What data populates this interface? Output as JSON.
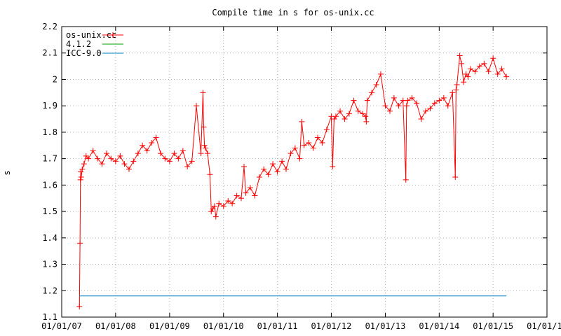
{
  "chart_data": {
    "type": "line",
    "title": "Compile time in s for os-unix.cc",
    "xlabel": "",
    "ylabel": "s",
    "x_is_date": true,
    "xlim": [
      "2007-01-01",
      "2016-01-01"
    ],
    "ylim": [
      1.1,
      2.2
    ],
    "y_ticks": [
      1.1,
      1.2,
      1.3,
      1.4,
      1.5,
      1.6,
      1.7,
      1.8,
      1.9,
      2.0,
      2.1,
      2.2
    ],
    "y_tick_labels": [
      "1.1",
      "1.2",
      "1.3",
      "1.4",
      "1.5",
      "1.6",
      "1.7",
      "1.8",
      "1.9",
      "2",
      "2.1",
      "2.2"
    ],
    "x_ticks": [
      "2007-01-01",
      "2008-01-01",
      "2009-01-01",
      "2010-01-01",
      "2011-01-01",
      "2012-01-01",
      "2013-01-01",
      "2014-01-01",
      "2015-01-01",
      "2016-01-01"
    ],
    "x_tick_labels": [
      "01/01/07",
      "01/01/08",
      "01/01/09",
      "01/01/10",
      "01/01/11",
      "01/01/12",
      "01/01/13",
      "01/01/14",
      "01/01/15",
      "01/01/16"
    ],
    "grid": true,
    "legend_position": "top-left",
    "series": [
      {
        "name": "os-unix.cc",
        "color": "#ff0000",
        "marker": "plus",
        "x": [
          "2007-05-01",
          "2007-05-05",
          "2007-05-08",
          "2007-05-10",
          "2007-05-13",
          "2007-05-20",
          "2007-06-01",
          "2007-06-15",
          "2007-07-01",
          "2007-08-01",
          "2007-09-01",
          "2007-10-01",
          "2007-11-01",
          "2007-12-01",
          "2008-01-01",
          "2008-02-01",
          "2008-03-01",
          "2008-04-01",
          "2008-05-01",
          "2008-06-01",
          "2008-07-01",
          "2008-08-01",
          "2008-09-01",
          "2008-10-01",
          "2008-11-01",
          "2008-12-01",
          "2009-01-01",
          "2009-02-01",
          "2009-03-01",
          "2009-04-01",
          "2009-05-01",
          "2009-06-01",
          "2009-07-01",
          "2009-08-01",
          "2009-08-15",
          "2009-08-20",
          "2009-08-25",
          "2009-09-01",
          "2009-09-15",
          "2009-10-01",
          "2009-10-10",
          "2009-10-20",
          "2009-11-01",
          "2009-11-10",
          "2009-12-01",
          "2010-01-01",
          "2010-02-01",
          "2010-03-01",
          "2010-04-01",
          "2010-05-01",
          "2010-05-20",
          "2010-06-01",
          "2010-07-01",
          "2010-08-01",
          "2010-09-01",
          "2010-10-01",
          "2010-11-01",
          "2010-12-01",
          "2011-01-01",
          "2011-02-01",
          "2011-03-01",
          "2011-04-01",
          "2011-05-01",
          "2011-06-01",
          "2011-06-15",
          "2011-07-01",
          "2011-08-01",
          "2011-09-01",
          "2011-10-01",
          "2011-11-01",
          "2011-12-01",
          "2012-01-01",
          "2012-01-10",
          "2012-01-20",
          "2012-02-01",
          "2012-03-01",
          "2012-04-01",
          "2012-05-01",
          "2012-06-01",
          "2012-07-01",
          "2012-08-01",
          "2012-08-20",
          "2012-08-25",
          "2012-09-01",
          "2012-10-01",
          "2012-11-01",
          "2012-12-01",
          "2013-01-01",
          "2013-02-01",
          "2013-03-01",
          "2013-04-01",
          "2013-05-01",
          "2013-05-20",
          "2013-05-25",
          "2013-06-01",
          "2013-07-01",
          "2013-08-01",
          "2013-09-01",
          "2013-10-01",
          "2013-11-01",
          "2013-12-01",
          "2014-01-01",
          "2014-02-01",
          "2014-03-01",
          "2014-04-01",
          "2014-04-20",
          "2014-04-25",
          "2014-05-01",
          "2014-05-20",
          "2014-06-01",
          "2014-06-15",
          "2014-07-01",
          "2014-07-15",
          "2014-08-01",
          "2014-09-01",
          "2014-10-01",
          "2014-11-01",
          "2014-12-01",
          "2015-01-01",
          "2015-02-01",
          "2015-03-01",
          "2015-04-01"
        ],
        "y": [
          1.14,
          1.38,
          1.62,
          1.65,
          1.63,
          1.66,
          1.68,
          1.71,
          1.7,
          1.73,
          1.7,
          1.68,
          1.72,
          1.7,
          1.69,
          1.71,
          1.68,
          1.66,
          1.69,
          1.72,
          1.75,
          1.73,
          1.76,
          1.78,
          1.72,
          1.7,
          1.69,
          1.72,
          1.7,
          1.73,
          1.67,
          1.69,
          1.9,
          1.72,
          1.95,
          1.82,
          1.75,
          1.74,
          1.72,
          1.64,
          1.5,
          1.51,
          1.52,
          1.48,
          1.53,
          1.52,
          1.54,
          1.53,
          1.56,
          1.55,
          1.67,
          1.57,
          1.59,
          1.56,
          1.63,
          1.66,
          1.64,
          1.68,
          1.65,
          1.69,
          1.66,
          1.72,
          1.74,
          1.7,
          1.84,
          1.75,
          1.76,
          1.74,
          1.78,
          1.76,
          1.81,
          1.86,
          1.67,
          1.85,
          1.86,
          1.88,
          1.85,
          1.87,
          1.92,
          1.88,
          1.87,
          1.86,
          1.84,
          1.92,
          1.95,
          1.98,
          2.02,
          1.9,
          1.88,
          1.93,
          1.9,
          1.92,
          1.62,
          1.9,
          1.92,
          1.93,
          1.91,
          1.85,
          1.88,
          1.89,
          1.91,
          1.92,
          1.93,
          1.9,
          1.95,
          1.63,
          1.96,
          1.98,
          2.09,
          2.06,
          1.99,
          2.02,
          2.01,
          2.04,
          2.03,
          2.05,
          2.06,
          2.03,
          2.08,
          2.02,
          2.04,
          2.01
        ]
      },
      {
        "name": "4.1.2",
        "color": "#00a000",
        "x": [],
        "y": []
      },
      {
        "name": "ICC-9.0",
        "color": "#0080c0",
        "x": [
          "2007-05-01",
          "2015-04-01"
        ],
        "y": [
          1.18,
          1.18
        ]
      }
    ]
  }
}
